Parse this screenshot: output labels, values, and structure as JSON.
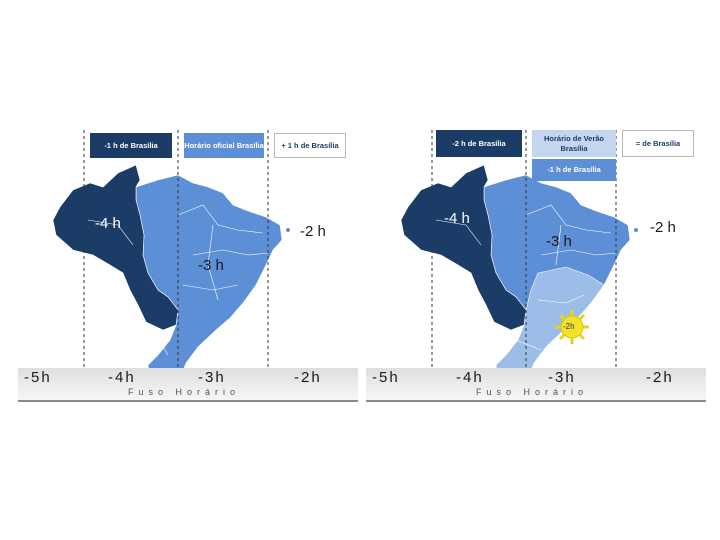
{
  "left_map": {
    "legend": {
      "minus1": "-1 h de Brasília",
      "official": "Horário oficial Brasília",
      "plus1": "+ 1 h de Brasília"
    },
    "zones": {
      "west": "-4 h",
      "central": "-3 h",
      "east": "-2 h"
    },
    "axis": {
      "ticks": [
        "-5h",
        "-4h",
        "-3h",
        "-2h"
      ],
      "title": "Fuso Horário"
    },
    "colors": {
      "dark": "#1c3c68",
      "mid": "#5d8fd6"
    }
  },
  "right_map": {
    "legend": {
      "minus2": "-2 h de Brasília",
      "summer": "Horário de Verão Brasília",
      "equal": "= de Brasília",
      "minus1": "-1 h de Brasília"
    },
    "zones": {
      "west": "-4 h",
      "central": "-3 h",
      "east": "-2 h",
      "summer_badge": "-2h"
    },
    "axis": {
      "ticks": [
        "-5h",
        "-4h",
        "-3h",
        "-2h"
      ],
      "title": "Fuso Horário"
    },
    "colors": {
      "dark": "#1c3c68",
      "mid": "#5d8fd6",
      "light": "#9cbde8",
      "sun": "#f3e227"
    }
  }
}
